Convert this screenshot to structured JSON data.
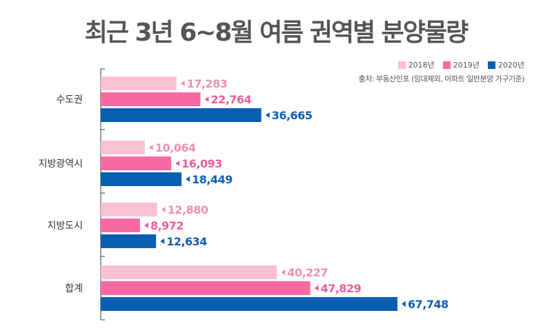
{
  "title": "최근 3년 6~8월 여름 권역별 분양물량",
  "source": "출처: 부동산인포 (임대제외, 아파트 일반분양 가구기준)",
  "colors": {
    "2018": "#f9c1d2",
    "2019": "#f56aa4",
    "2020": "#0b5fb3",
    "label_2018": "#ef8fb2",
    "label_2019": "#ee5a9a",
    "label_2020": "#0b5fb3"
  },
  "chart_data": {
    "type": "bar",
    "orientation": "horizontal",
    "title": "최근 3년 6~8월 여름 권역별 분양물량",
    "categories": [
      "수도권",
      "지방광역시",
      "지방도시",
      "합계"
    ],
    "series": [
      {
        "name": "2018년",
        "values": [
          17283,
          10064,
          12880,
          40227
        ],
        "labels": [
          "17,283",
          "10,064",
          "12,880",
          "40,227"
        ]
      },
      {
        "name": "2019년",
        "values": [
          22764,
          16093,
          8972,
          47829
        ],
        "labels": [
          "22,764",
          "16,093",
          "8,972",
          "47,829"
        ]
      },
      {
        "name": "2020년",
        "values": [
          36665,
          18449,
          12634,
          67748
        ],
        "labels": [
          "36,665",
          "18,449",
          "12,634",
          "67,748"
        ]
      }
    ],
    "xlim": [
      0,
      67748
    ],
    "legend_position": "top-right",
    "grid": false
  }
}
